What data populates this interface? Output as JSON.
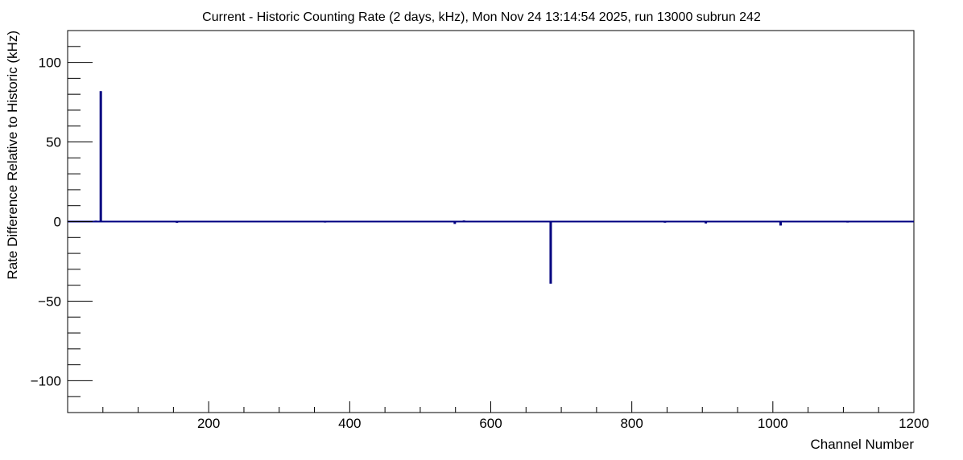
{
  "chart_data": {
    "type": "bar",
    "title": "Current - Historic Counting Rate (2 days, kHz), Mon Nov 24 13:14:54 2025, run 13000 subrun 242",
    "xlabel": "Channel Number",
    "ylabel": "Rate Difference Relative to Historic (kHz)",
    "xlim": [
      0,
      1200
    ],
    "ylim": [
      -120,
      120
    ],
    "x_ticks": [
      200,
      400,
      600,
      800,
      1000,
      1200
    ],
    "x_tick_labels": [
      "200",
      "400",
      "600",
      "800",
      "1000",
      "1200"
    ],
    "y_ticks": [
      -100,
      -50,
      0,
      50,
      100
    ],
    "y_tick_labels": [
      "−100",
      "−50",
      "0",
      "50",
      "100"
    ],
    "grid": false,
    "legend": "none",
    "baseline": 0,
    "series": [
      {
        "color": "#000080",
        "x": [
          40,
          47,
          110,
          155,
          365,
          442,
          549,
          562,
          640,
          685,
          762,
          847,
          905,
          1011,
          1106
        ],
        "values": [
          0.6,
          82,
          0.5,
          -0.8,
          -0.6,
          0.4,
          -1.5,
          0.7,
          -0.5,
          -39,
          -0.5,
          -0.7,
          -1.2,
          -2.5,
          -0.6
        ]
      }
    ]
  }
}
